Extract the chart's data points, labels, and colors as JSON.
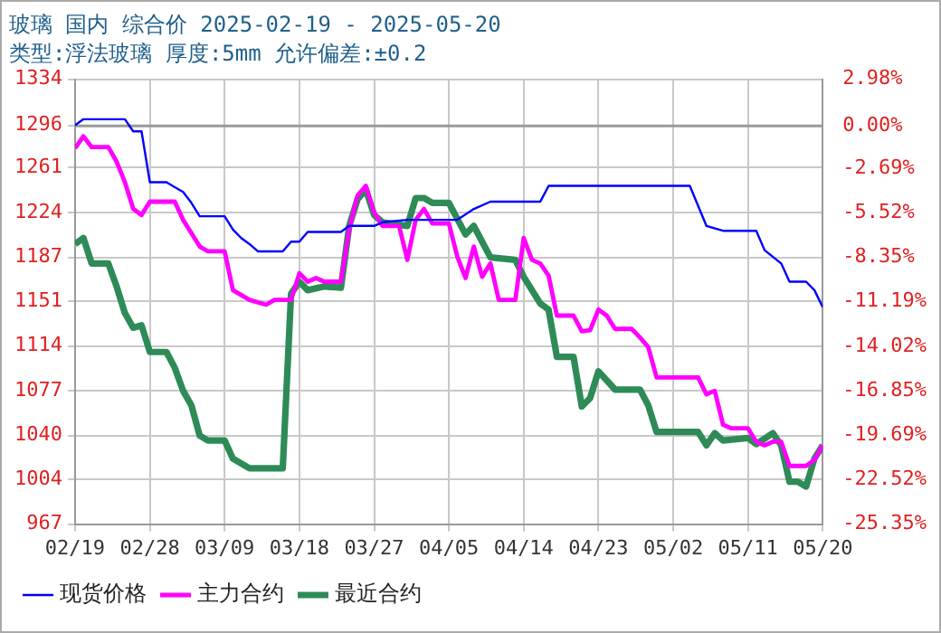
{
  "chart_data": {
    "type": "line",
    "title": "玻璃 国内 综合价 2025-02-19 - 2025-05-20",
    "subtitle": "类型:浮法玻璃 厚度:5mm 允许偏差:±0.2",
    "xlim": [
      "2025-02-19",
      "2025-05-20"
    ],
    "xticks": [
      {
        "value": "2025-02-19",
        "label": "02/19"
      },
      {
        "value": "2025-02-28",
        "label": "02/28"
      },
      {
        "value": "2025-03-09",
        "label": "03/09"
      },
      {
        "value": "2025-03-18",
        "label": "03/18"
      },
      {
        "value": "2025-03-27",
        "label": "03/27"
      },
      {
        "value": "2025-04-05",
        "label": "04/05"
      },
      {
        "value": "2025-04-14",
        "label": "04/14"
      },
      {
        "value": "2025-04-23",
        "label": "04/23"
      },
      {
        "value": "2025-05-02",
        "label": "05/02"
      },
      {
        "value": "2025-05-11",
        "label": "05/11"
      },
      {
        "value": "2025-05-20",
        "label": "05/20"
      }
    ],
    "ylim": [
      967,
      1334
    ],
    "yticks": [
      967,
      1004,
      1040,
      1077,
      1114,
      1151,
      1187,
      1224,
      1261,
      1296,
      1334
    ],
    "y2lim": [
      -25.35,
      2.98
    ],
    "y2ticks": [
      {
        "value": -25.35,
        "label": "-25.35%"
      },
      {
        "value": -22.52,
        "label": "-22.52%"
      },
      {
        "value": -19.69,
        "label": "-19.69%"
      },
      {
        "value": -16.85,
        "label": "-16.85%"
      },
      {
        "value": -14.02,
        "label": "-14.02%"
      },
      {
        "value": -11.19,
        "label": "-11.19%"
      },
      {
        "value": -8.35,
        "label": "-8.35%"
      },
      {
        "value": -5.52,
        "label": "-5.52%"
      },
      {
        "value": -2.69,
        "label": "-2.69%"
      },
      {
        "value": 0,
        "label": "0.00%"
      },
      {
        "value": 2.98,
        "label": "2.98%"
      }
    ],
    "ref_lines": [
      {
        "axis": "y2",
        "value": 0,
        "color": "#999999"
      }
    ],
    "grid": true,
    "legend": "bottom left",
    "marker": "none",
    "line_style": "solid",
    "series": [
      {
        "name": "现货价格",
        "color": "#0000ff",
        "x": [
          "2025-02-19",
          "2025-02-20",
          "2025-02-25",
          "2025-02-26",
          "2025-02-27",
          "2025-02-28",
          "2025-03-02",
          "2025-03-03",
          "2025-03-04",
          "2025-03-05",
          "2025-03-06",
          "2025-03-09",
          "2025-03-10",
          "2025-03-11",
          "2025-03-12",
          "2025-03-13",
          "2025-03-16",
          "2025-03-17",
          "2025-03-18",
          "2025-03-19",
          "2025-03-23",
          "2025-03-24",
          "2025-03-27",
          "2025-03-28",
          "2025-03-31",
          "2025-04-06",
          "2025-04-08",
          "2025-04-10",
          "2025-04-16",
          "2025-04-17",
          "2025-05-04",
          "2025-05-06",
          "2025-05-08",
          "2025-05-12",
          "2025-05-13",
          "2025-05-15",
          "2025-05-16",
          "2025-05-18",
          "2025-05-19",
          "2025-05-20"
        ],
        "values": [
          1296,
          1301,
          1301,
          1291,
          1291,
          1249,
          1249,
          1245,
          1241,
          1232,
          1221,
          1221,
          1210,
          1203,
          1198,
          1192,
          1192,
          1200,
          1200,
          1208,
          1208,
          1213,
          1213,
          1216,
          1218,
          1218,
          1227,
          1233,
          1233,
          1246,
          1246,
          1213,
          1209,
          1209,
          1193,
          1182,
          1167,
          1167,
          1160,
          1146
        ]
      },
      {
        "name": "主力合约",
        "color": "#ff00ff",
        "x": [
          "2025-02-19",
          "2025-02-20",
          "2025-02-21",
          "2025-02-23",
          "2025-02-24",
          "2025-02-25",
          "2025-02-26",
          "2025-02-27",
          "2025-02-28",
          "2025-03-03",
          "2025-03-04",
          "2025-03-06",
          "2025-03-07",
          "2025-03-09",
          "2025-03-10",
          "2025-03-12",
          "2025-03-14",
          "2025-03-15",
          "2025-03-17",
          "2025-03-18",
          "2025-03-19",
          "2025-03-20",
          "2025-03-21",
          "2025-03-23",
          "2025-03-24",
          "2025-03-25",
          "2025-03-26",
          "2025-03-27",
          "2025-03-28",
          "2025-03-30",
          "2025-03-31",
          "2025-04-01",
          "2025-04-02",
          "2025-04-03",
          "2025-04-05",
          "2025-04-06",
          "2025-04-07",
          "2025-04-08",
          "2025-04-09",
          "2025-04-10",
          "2025-04-11",
          "2025-04-13",
          "2025-04-14",
          "2025-04-15",
          "2025-04-16",
          "2025-04-17",
          "2025-04-18",
          "2025-04-20",
          "2025-04-21",
          "2025-04-22",
          "2025-04-23",
          "2025-04-24",
          "2025-04-25",
          "2025-04-27",
          "2025-04-28",
          "2025-04-29",
          "2025-04-30",
          "2025-05-05",
          "2025-05-06",
          "2025-05-07",
          "2025-05-08",
          "2025-05-09",
          "2025-05-11",
          "2025-05-12",
          "2025-05-13",
          "2025-05-14",
          "2025-05-15",
          "2025-05-16",
          "2025-05-18",
          "2025-05-19",
          "2025-05-20"
        ],
        "values": [
          1277,
          1287,
          1278,
          1278,
          1266,
          1249,
          1227,
          1222,
          1233,
          1233,
          1218,
          1196,
          1192,
          1192,
          1160,
          1152,
          1148,
          1152,
          1152,
          1174,
          1167,
          1170,
          1167,
          1167,
          1210,
          1238,
          1246,
          1224,
          1213,
          1213,
          1185,
          1218,
          1227,
          1215,
          1215,
          1188,
          1170,
          1196,
          1171,
          1182,
          1152,
          1152,
          1203,
          1185,
          1182,
          1172,
          1139,
          1139,
          1126,
          1127,
          1144,
          1139,
          1128,
          1128,
          1121,
          1113,
          1088,
          1088,
          1074,
          1077,
          1049,
          1046,
          1046,
          1035,
          1032,
          1035,
          1035,
          1015,
          1015,
          1020,
          1032
        ]
      },
      {
        "name": "最近合约",
        "color": "#2e8b57",
        "x": [
          "2025-02-19",
          "2025-02-20",
          "2025-02-21",
          "2025-02-23",
          "2025-02-24",
          "2025-02-25",
          "2025-02-26",
          "2025-02-27",
          "2025-02-28",
          "2025-03-02",
          "2025-03-03",
          "2025-03-04",
          "2025-03-05",
          "2025-03-06",
          "2025-03-07",
          "2025-03-09",
          "2025-03-10",
          "2025-03-12",
          "2025-03-16",
          "2025-03-17",
          "2025-03-18",
          "2025-03-19",
          "2025-03-21",
          "2025-03-23",
          "2025-03-24",
          "2025-03-25",
          "2025-03-26",
          "2025-03-27",
          "2025-03-28",
          "2025-03-31",
          "2025-04-01",
          "2025-04-02",
          "2025-04-03",
          "2025-04-05",
          "2025-04-07",
          "2025-04-08",
          "2025-04-09",
          "2025-04-10",
          "2025-04-13",
          "2025-04-14",
          "2025-04-16",
          "2025-04-17",
          "2025-04-18",
          "2025-04-20",
          "2025-04-21",
          "2025-04-22",
          "2025-04-23",
          "2025-04-25",
          "2025-04-28",
          "2025-04-29",
          "2025-04-30",
          "2025-05-05",
          "2025-05-06",
          "2025-05-07",
          "2025-05-08",
          "2025-05-11",
          "2025-05-12",
          "2025-05-14",
          "2025-05-15",
          "2025-05-16",
          "2025-05-17",
          "2025-05-18",
          "2025-05-19",
          "2025-05-20"
        ],
        "values": [
          1198,
          1203,
          1182,
          1182,
          1163,
          1141,
          1129,
          1131,
          1109,
          1109,
          1096,
          1077,
          1065,
          1040,
          1036,
          1036,
          1021,
          1013,
          1013,
          1157,
          1167,
          1160,
          1163,
          1162,
          1213,
          1235,
          1243,
          1222,
          1216,
          1213,
          1236,
          1236,
          1232,
          1232,
          1206,
          1213,
          1200,
          1187,
          1185,
          1171,
          1149,
          1144,
          1105,
          1105,
          1064,
          1071,
          1093,
          1078,
          1078,
          1065,
          1043,
          1043,
          1032,
          1042,
          1036,
          1038,
          1033,
          1042,
          1032,
          1002,
          1002,
          998,
          1021,
          1032
        ]
      }
    ]
  }
}
